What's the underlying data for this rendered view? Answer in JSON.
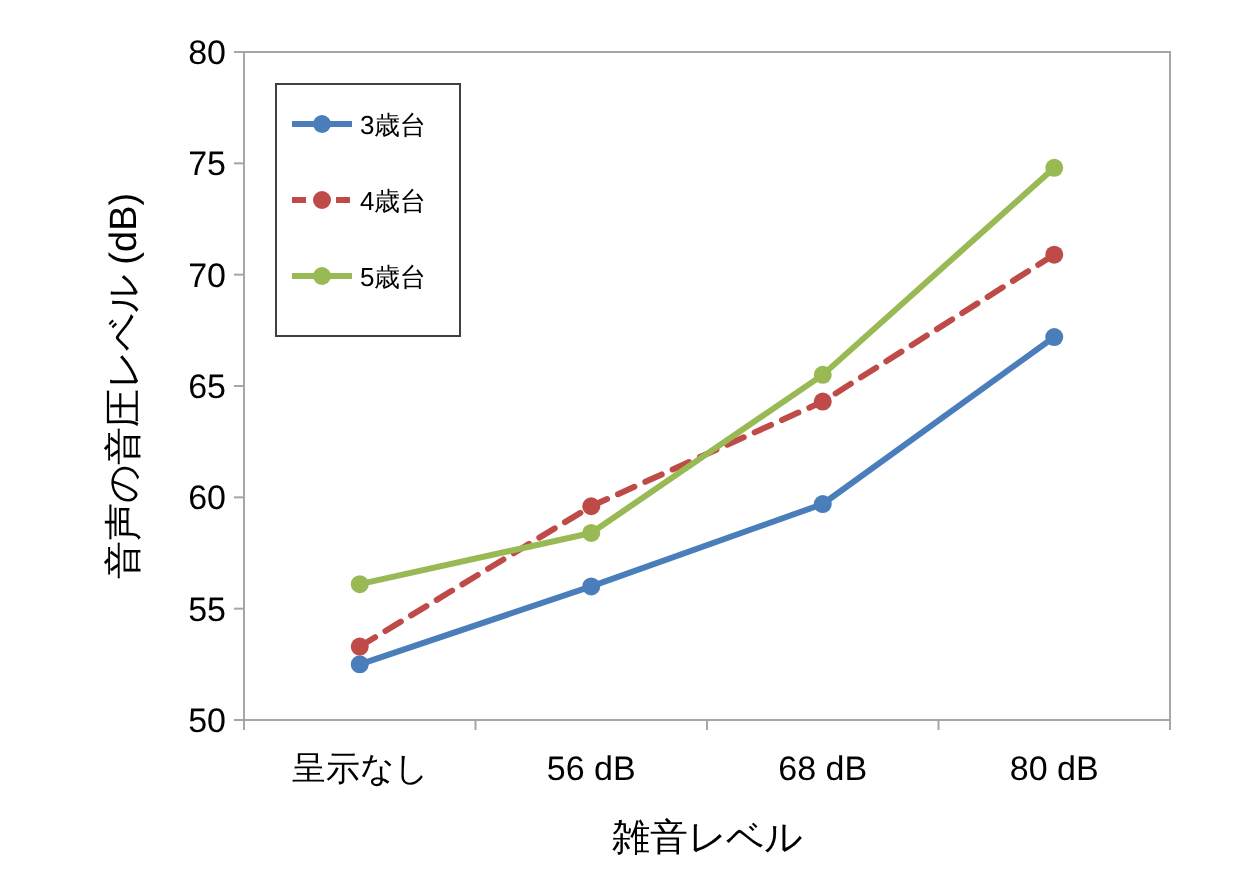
{
  "chart_data": {
    "type": "line",
    "xlabel": "雑音レベル",
    "ylabel": "音声の音圧レベル (dB)",
    "categories": [
      "呈示なし",
      "56 dB",
      "68 dB",
      "80 dB"
    ],
    "series": [
      {
        "name": "3歳台",
        "color": "#4a7ebb",
        "values": [
          52.5,
          56.0,
          59.7,
          67.2
        ]
      },
      {
        "name": "4歳台",
        "color": "#be4b48",
        "values": [
          53.3,
          59.6,
          64.3,
          70.9
        ],
        "line_style": "dashed"
      },
      {
        "name": "5歳台",
        "color": "#98b954",
        "values": [
          56.1,
          58.4,
          65.5,
          74.8
        ]
      }
    ],
    "ylim": [
      50,
      80
    ],
    "yticks": [
      50,
      55,
      60,
      65,
      70,
      75,
      80
    ],
    "grid": false,
    "legend": "top left",
    "marker": "circle",
    "line_style": "solid"
  }
}
